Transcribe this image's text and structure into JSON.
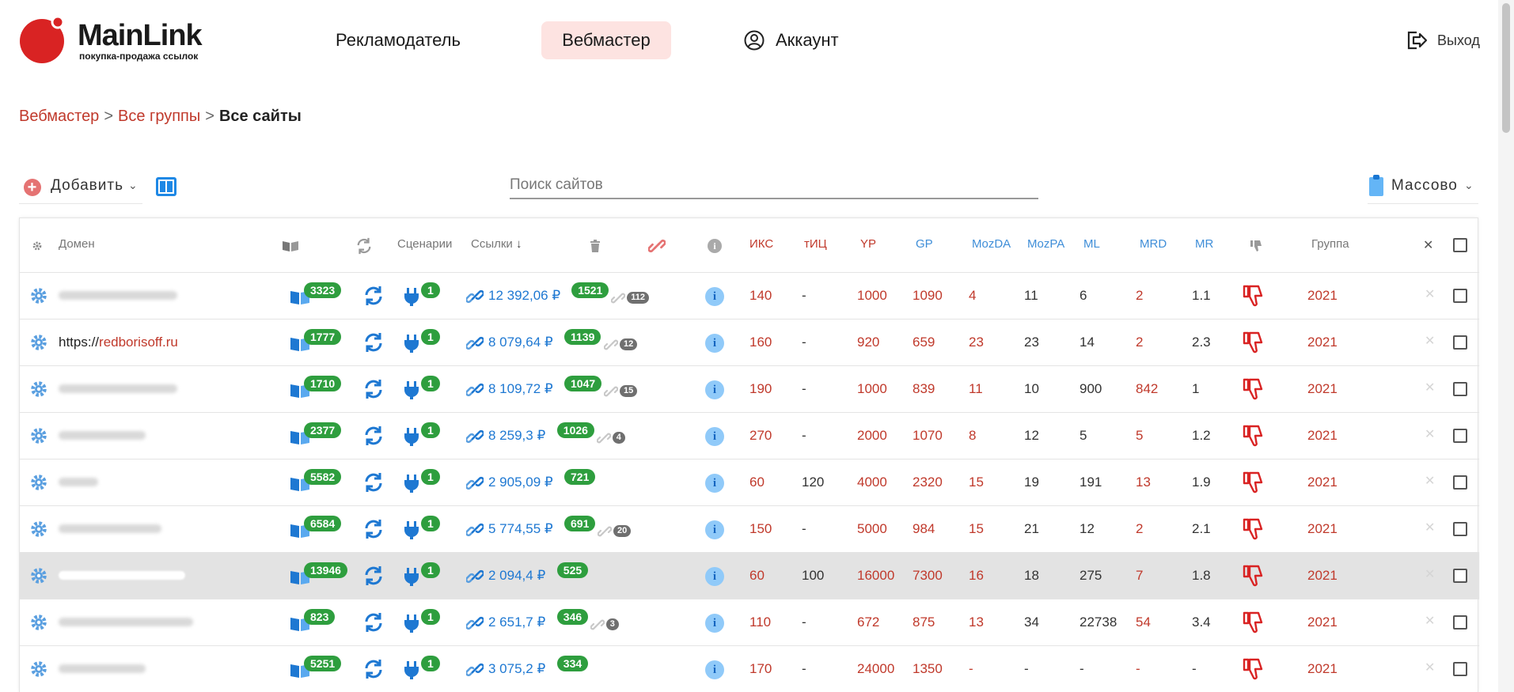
{
  "header": {
    "logo": {
      "name": "MainLink",
      "tagline": "покупка-продажа ссылок"
    },
    "nav": {
      "advertiser": "Рекламодатель",
      "webmaster": "Вебмастер",
      "account": "Аккаунт"
    },
    "logout": "Выход"
  },
  "breadcrumb": {
    "item1": "Вебмастер",
    "item2": "Все группы",
    "current": "Все сайты",
    "separator": ">"
  },
  "toolbar": {
    "add_label": "Добавить",
    "search_placeholder": "Поиск сайтов",
    "mass_label": "Массово"
  },
  "table": {
    "columns": {
      "domain": "Домен",
      "scenarios": "Сценарии",
      "links": "Ссылки",
      "iks": "ИКС",
      "tic": "тИЦ",
      "yr": "YP",
      "gp": "GP",
      "mozda": "MozDA",
      "mozpa": "MozPA",
      "ml": "ML",
      "mrd": "MRD",
      "mr": "MR",
      "group": "Группа"
    },
    "rows": [
      {
        "domain_prefix": "",
        "domain_link": "",
        "pages": "3323",
        "scenarios": "1",
        "price": "12 392,06 ₽",
        "links": "1521",
        "removed": "112",
        "iks": "140",
        "tic": "-",
        "yr": "1000",
        "gp": "1090",
        "mozda": "4",
        "mozpa": "11",
        "ml": "6",
        "mrd": "2",
        "mr": "1.1",
        "group": "2021"
      },
      {
        "domain_prefix": "https://",
        "domain_link": "redborisoff.ru",
        "pages": "1777",
        "scenarios": "1",
        "price": "8 079,64 ₽",
        "links": "1139",
        "removed": "12",
        "iks": "160",
        "tic": "-",
        "yr": "920",
        "gp": "659",
        "mozda": "23",
        "mozpa": "23",
        "ml": "14",
        "mrd": "2",
        "mr": "2.3",
        "group": "2021"
      },
      {
        "domain_prefix": "",
        "domain_link": "",
        "pages": "1710",
        "scenarios": "1",
        "price": "8 109,72 ₽",
        "links": "1047",
        "removed": "15",
        "iks": "190",
        "tic": "-",
        "yr": "1000",
        "gp": "839",
        "mozda": "11",
        "mozpa": "10",
        "ml": "900",
        "mrd": "842",
        "mr": "1",
        "group": "2021"
      },
      {
        "domain_prefix": "",
        "domain_link": "",
        "pages": "2377",
        "scenarios": "1",
        "price": "8 259,3 ₽",
        "links": "1026",
        "removed": "4",
        "iks": "270",
        "tic": "-",
        "yr": "2000",
        "gp": "1070",
        "mozda": "8",
        "mozpa": "12",
        "ml": "5",
        "mrd": "5",
        "mr": "1.2",
        "group": "2021"
      },
      {
        "domain_prefix": "",
        "domain_link": "",
        "pages": "5582",
        "scenarios": "1",
        "price": "2 905,09 ₽",
        "links": "721",
        "removed": "",
        "iks": "60",
        "tic": "120",
        "yr": "4000",
        "gp": "2320",
        "mozda": "15",
        "mozpa": "19",
        "ml": "191",
        "mrd": "13",
        "mr": "1.9",
        "group": "2021"
      },
      {
        "domain_prefix": "",
        "domain_link": "",
        "pages": "6584",
        "scenarios": "1",
        "price": "5 774,55 ₽",
        "links": "691",
        "removed": "20",
        "iks": "150",
        "tic": "-",
        "yr": "5000",
        "gp": "984",
        "mozda": "15",
        "mozpa": "21",
        "ml": "12",
        "mrd": "2",
        "mr": "2.1",
        "group": "2021"
      },
      {
        "domain_prefix": "",
        "domain_link": "",
        "pages": "13946",
        "scenarios": "1",
        "price": "2 094,4 ₽",
        "links": "525",
        "removed": "",
        "iks": "60",
        "tic": "100",
        "yr": "16000",
        "gp": "7300",
        "mozda": "16",
        "mozpa": "18",
        "ml": "275",
        "mrd": "7",
        "mr": "1.8",
        "group": "2021"
      },
      {
        "domain_prefix": "",
        "domain_link": "",
        "pages": "823",
        "scenarios": "1",
        "price": "2 651,7 ₽",
        "links": "346",
        "removed": "3",
        "iks": "110",
        "tic": "-",
        "yr": "672",
        "gp": "875",
        "mozda": "13",
        "mozpa": "34",
        "ml": "22738",
        "mrd": "54",
        "mr": "3.4",
        "group": "2021"
      },
      {
        "domain_prefix": "",
        "domain_link": "",
        "pages": "5251",
        "scenarios": "1",
        "price": "3 075,2 ₽",
        "links": "334",
        "removed": "",
        "iks": "170",
        "tic": "-",
        "yr": "24000",
        "gp": "1350",
        "mozda": "-",
        "mozpa": "-",
        "ml": "-",
        "mrd": "-",
        "mr": "-",
        "group": "2021"
      }
    ]
  },
  "colors": {
    "brand_red": "#d92323",
    "accent_blue": "#1e78d2",
    "badge_green": "#2e9e3e",
    "nav_active_bg": "#fde3e1"
  }
}
